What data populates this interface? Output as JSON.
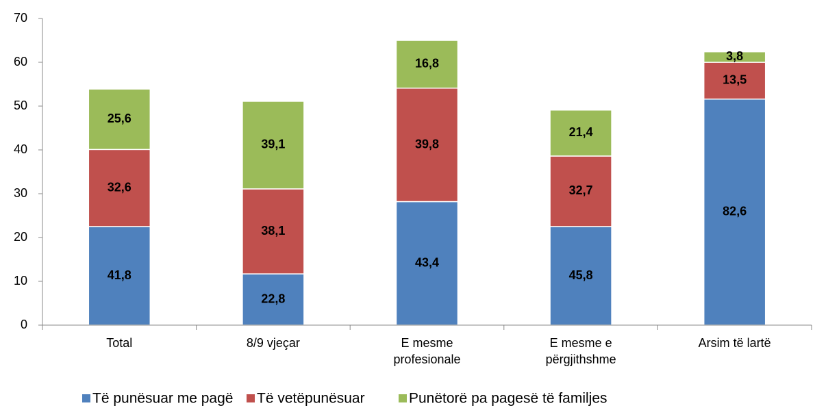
{
  "chart_data": {
    "type": "stacked_bar",
    "categories": [
      [
        "Total"
      ],
      [
        "8/9 vjeçar"
      ],
      [
        "E mesme",
        "profesionale"
      ],
      [
        "E mesme e",
        "përgjithshme"
      ],
      [
        "Arsim të lartë"
      ]
    ],
    "series": [
      {
        "name": "Të punësuar me pagë",
        "color": "#4f81bd",
        "values": [
          22.5,
          11.7,
          28.2,
          22.5,
          51.6
        ],
        "share_labels": [
          "41,8",
          "22,8",
          "43,4",
          "45,8",
          "82,6"
        ]
      },
      {
        "name": "Të vetëpunësuar",
        "color": "#c0504d",
        "values": [
          17.6,
          19.4,
          25.9,
          16.1,
          8.4
        ],
        "share_labels": [
          "32,6",
          "38,1",
          "39,8",
          "32,7",
          "13,5"
        ]
      },
      {
        "name": "Punëtorë pa pagesë të familjes",
        "color": "#9bbb59",
        "values": [
          13.8,
          20.0,
          10.9,
          10.5,
          2.4
        ],
        "share_labels": [
          "25,6",
          "39,1",
          "16,8",
          "21,4",
          "3,8"
        ]
      }
    ],
    "ylim": [
      0,
      70
    ],
    "yticks": [
      0,
      10,
      20,
      30,
      40,
      50,
      60,
      70
    ],
    "grid": false,
    "legend": "bottom"
  }
}
